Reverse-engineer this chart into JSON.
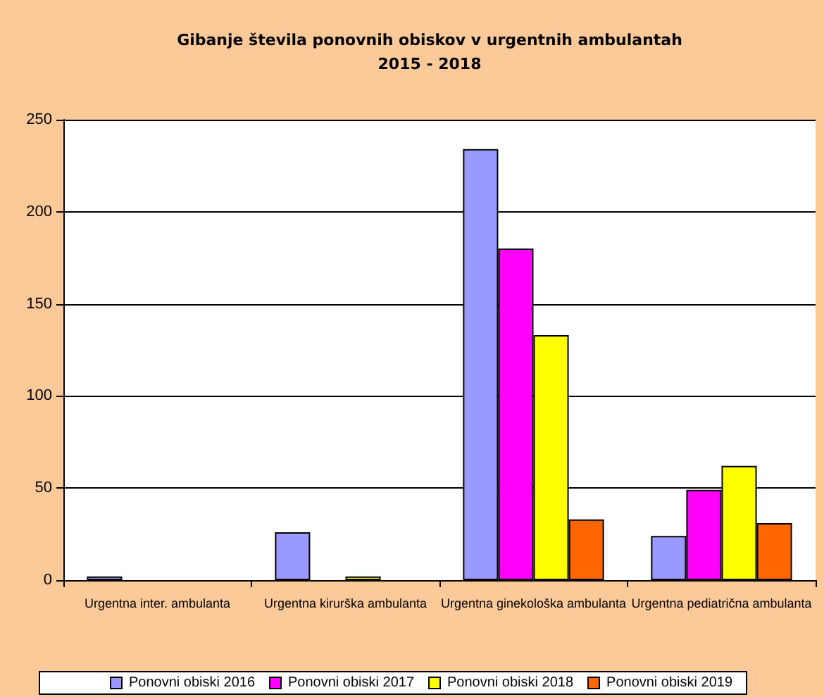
{
  "chart_data": {
    "type": "bar",
    "title": "Gibanje števila ponovnih obiskov v urgentnih ambulantah",
    "subtitle": "2015 - 2018",
    "categories": [
      "Urgentna inter. ambulanta",
      "Urgentna kirurška ambulanta",
      "Urgentna ginekološka ambulanta",
      "Urgentna pediatrična ambulanta"
    ],
    "series": [
      {
        "name": "Ponovni obiski 2016",
        "color": "#9999ff",
        "values": [
          2,
          26,
          234,
          24
        ]
      },
      {
        "name": "Ponovni obiski 2017",
        "color": "#ff00ff",
        "values": [
          null,
          null,
          180,
          49
        ]
      },
      {
        "name": "Ponovni obiski 2018",
        "color": "#ffff00",
        "values": [
          null,
          2,
          133,
          62
        ]
      },
      {
        "name": "Ponovni obiski 2019",
        "color": "#ff6600",
        "values": [
          null,
          null,
          33,
          31
        ]
      }
    ],
    "ylim": [
      0,
      250
    ],
    "yticks": [
      0,
      50,
      100,
      150,
      200,
      250
    ],
    "grid": "y",
    "legend": "bottom"
  }
}
